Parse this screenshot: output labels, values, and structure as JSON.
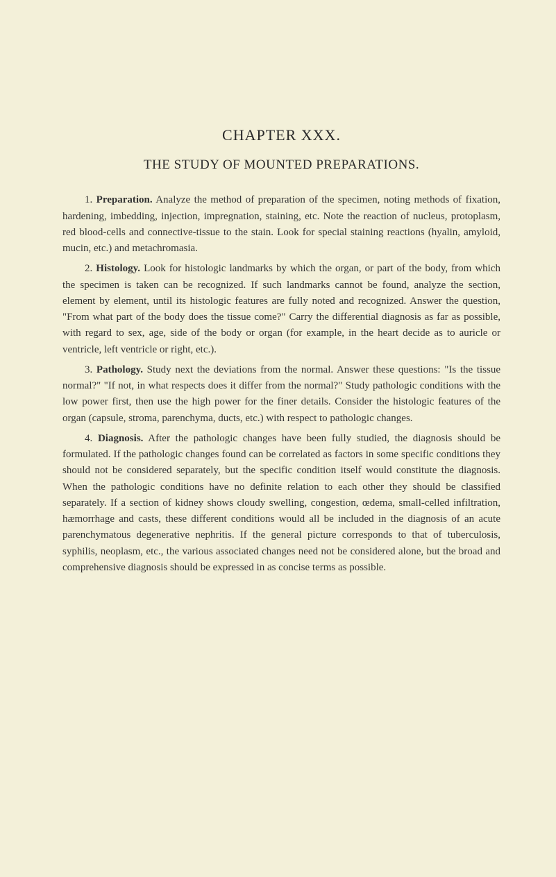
{
  "page": {
    "background_color": "#f3f0d9",
    "text_color": "#2a2a2a",
    "body_font_size": 15,
    "heading_font_size": 22,
    "title_font_size": 19
  },
  "chapter": {
    "heading": "CHAPTER XXX.",
    "title": "THE STUDY OF MOUNTED PREPARATIONS."
  },
  "sections": {
    "s1": {
      "number": "1.",
      "label": "Preparation.",
      "text": "Analyze the method of preparation of the specimen, noting methods of fixation, hardening, imbedding, injection, impregnation, staining, etc. Note the reaction of nucleus, protoplasm, red blood-cells and connective-tissue to the stain. Look for special staining reactions (hyalin, amyloid, mucin, etc.) and metachromasia."
    },
    "s2": {
      "number": "2.",
      "label": "Histology.",
      "text": "Look for histologic landmarks by which the organ, or part of the body, from which the specimen is taken can be recognized. If such landmarks cannot be found, analyze the section, element by element, until its histologic features are fully noted and recognized. Answer the question, \"From what part of the body does the tissue come?\" Carry the differential diagnosis as far as possible, with regard to sex, age, side of the body or organ (for example, in the heart decide as to auricle or ventricle, left ventricle or right, etc.)."
    },
    "s3": {
      "number": "3.",
      "label": "Pathology.",
      "text": "Study next the deviations from the normal. Answer these questions: \"Is the tissue normal?\" \"If not, in what respects does it differ from the normal?\" Study pathologic conditions with the low power first, then use the high power for the finer details. Consider the histologic features of the organ (capsule, stroma, parenchyma, ducts, etc.) with respect to pathologic changes."
    },
    "s4": {
      "number": "4.",
      "label": "Diagnosis.",
      "text": "After the pathologic changes have been fully studied, the diagnosis should be formulated. If the pathologic changes found can be correlated as factors in some specific conditions they should not be considered separately, but the specific condition itself would constitute the diagnosis. When the pathologic conditions have no definite relation to each other they should be classified separately. If a section of kidney shows cloudy swelling, congestion, œdema, small-celled infiltration, hæmorrhage and casts, these different conditions would all be included in the diagnosis of an acute parenchymatous degenerative nephritis. If the general picture corresponds to that of tuberculosis, syphilis, neoplasm, etc., the various associated changes need not be considered alone, but the broad and comprehensive diagnosis should be expressed in as concise terms as possible."
    }
  }
}
